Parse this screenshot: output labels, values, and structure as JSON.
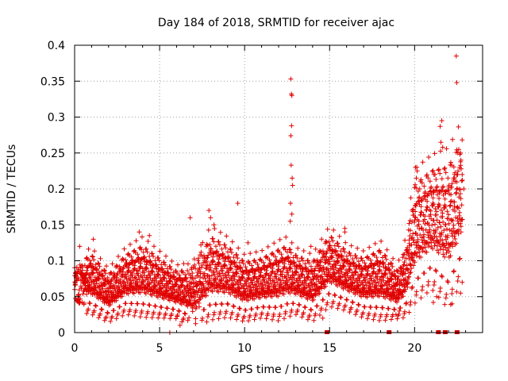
{
  "chart_data": {
    "type": "scatter",
    "title": "Day 184 of 2018, SRMTID for receiver ajac",
    "xlabel": "GPS time / hours",
    "ylabel": "SRMTID / TECUs",
    "xlim": [
      0,
      24
    ],
    "ylim": [
      0,
      0.4
    ],
    "xticks": [
      0,
      5,
      10,
      15,
      20
    ],
    "xtick_labels": [
      "0",
      "5",
      "10",
      "15",
      "20"
    ],
    "yticks": [
      0,
      0.05,
      0.1,
      0.15,
      0.2,
      0.25,
      0.3,
      0.35,
      0.4
    ],
    "ytick_labels": [
      "0",
      "0.05",
      "0.1",
      "0.15",
      "0.2",
      "0.25",
      "0.3",
      "0.35",
      "0.4"
    ],
    "grid": true,
    "marker": "plus",
    "color": "#e00000",
    "gap_marker_color": "#cc0000",
    "data_gaps_hours": [
      14.85,
      18.5,
      21.4,
      21.8,
      22.5
    ],
    "envelope": {
      "hours": [
        0,
        1,
        2,
        3,
        4,
        5,
        6,
        7,
        8,
        9,
        10,
        11,
        12,
        12.5,
        13,
        14,
        15,
        16,
        17,
        18,
        19,
        19.5,
        20,
        21,
        22,
        22.8
      ],
      "center": [
        0.065,
        0.07,
        0.05,
        0.07,
        0.075,
        0.065,
        0.055,
        0.05,
        0.08,
        0.075,
        0.06,
        0.065,
        0.07,
        0.075,
        0.07,
        0.06,
        0.09,
        0.075,
        0.065,
        0.07,
        0.055,
        0.075,
        0.13,
        0.15,
        0.14,
        0.18
      ],
      "spread": [
        0.02,
        0.025,
        0.02,
        0.025,
        0.03,
        0.025,
        0.02,
        0.025,
        0.035,
        0.03,
        0.025,
        0.025,
        0.03,
        0.03,
        0.025,
        0.025,
        0.03,
        0.025,
        0.025,
        0.03,
        0.02,
        0.03,
        0.05,
        0.05,
        0.06,
        0.06
      ]
    },
    "outliers": [
      {
        "x": 12.72,
        "y": 0.353
      },
      {
        "x": 12.75,
        "y": 0.332
      },
      {
        "x": 12.78,
        "y": 0.33
      },
      {
        "x": 12.76,
        "y": 0.288
      },
      {
        "x": 12.72,
        "y": 0.274
      },
      {
        "x": 12.74,
        "y": 0.233
      },
      {
        "x": 12.8,
        "y": 0.215
      },
      {
        "x": 12.82,
        "y": 0.205
      },
      {
        "x": 12.7,
        "y": 0.18
      },
      {
        "x": 12.78,
        "y": 0.165
      },
      {
        "x": 12.68,
        "y": 0.155
      },
      {
        "x": 9.6,
        "y": 0.18
      },
      {
        "x": 7.9,
        "y": 0.17
      },
      {
        "x": 8.0,
        "y": 0.16
      },
      {
        "x": 6.8,
        "y": 0.16
      },
      {
        "x": 3.8,
        "y": 0.14
      },
      {
        "x": 4.4,
        "y": 0.135
      },
      {
        "x": 0.3,
        "y": 0.12
      },
      {
        "x": 1.1,
        "y": 0.13
      },
      {
        "x": 15.9,
        "y": 0.145
      },
      {
        "x": 5.6,
        "y": 0.0
      },
      {
        "x": 6.2,
        "y": 0.01
      },
      {
        "x": 22.45,
        "y": 0.385
      },
      {
        "x": 22.48,
        "y": 0.348
      },
      {
        "x": 21.6,
        "y": 0.295
      },
      {
        "x": 21.5,
        "y": 0.287
      },
      {
        "x": 21.55,
        "y": 0.265
      },
      {
        "x": 21.65,
        "y": 0.258
      },
      {
        "x": 22.7,
        "y": 0.25
      },
      {
        "x": 22.6,
        "y": 0.255
      },
      {
        "x": 20.05,
        "y": 0.23
      },
      {
        "x": 20.15,
        "y": 0.225
      },
      {
        "x": 20.1,
        "y": 0.215
      },
      {
        "x": 20.3,
        "y": 0.2
      },
      {
        "x": 21.2,
        "y": 0.22
      },
      {
        "x": 22.3,
        "y": 0.215
      },
      {
        "x": 22.8,
        "y": 0.22
      },
      {
        "x": 22.9,
        "y": 0.2
      },
      {
        "x": 21.3,
        "y": 0.05
      },
      {
        "x": 21.1,
        "y": 0.042
      },
      {
        "x": 22.2,
        "y": 0.04
      },
      {
        "x": 22.7,
        "y": 0.055
      },
      {
        "x": 22.8,
        "y": 0.07
      },
      {
        "x": 14.6,
        "y": 0.02
      },
      {
        "x": 18.9,
        "y": 0.025
      },
      {
        "x": 19.1,
        "y": 0.03
      },
      {
        "x": 15.9,
        "y": 0.14
      },
      {
        "x": 8.2,
        "y": 0.15
      },
      {
        "x": 13.9,
        "y": 0.12
      },
      {
        "x": 10.2,
        "y": 0.125
      }
    ]
  }
}
